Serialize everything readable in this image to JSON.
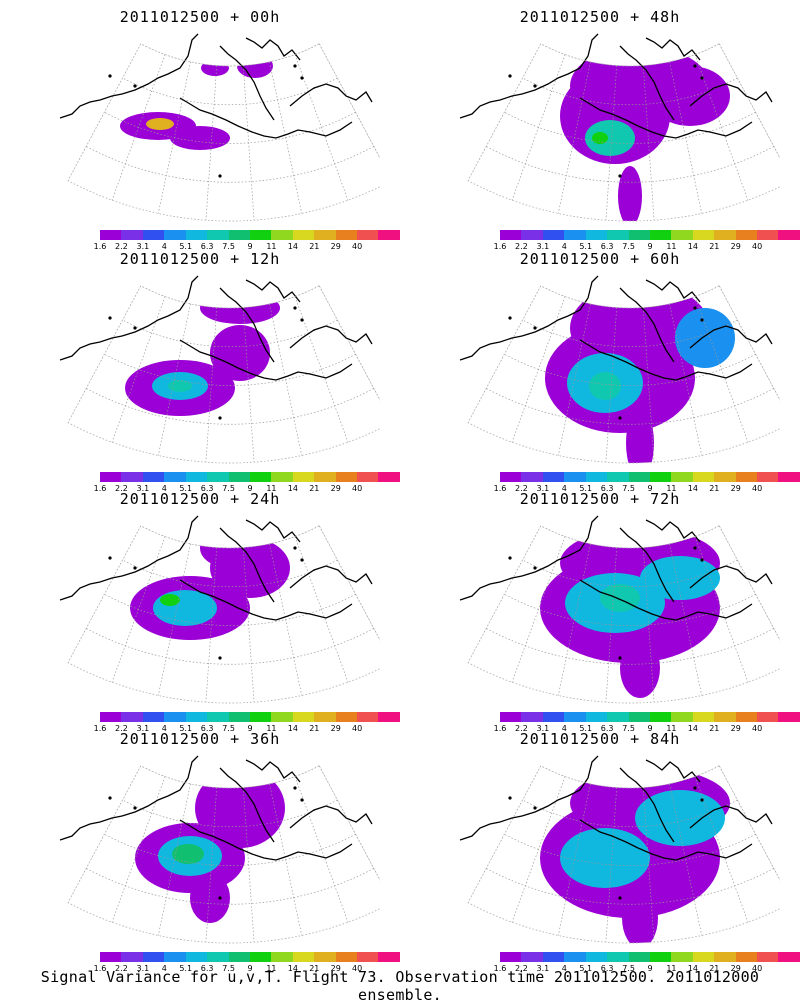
{
  "panels": [
    {
      "title": "2011012500 + 00h",
      "lead_hours": 0
    },
    {
      "title": "2011012500 + 48h",
      "lead_hours": 48
    },
    {
      "title": "2011012500 + 12h",
      "lead_hours": 12
    },
    {
      "title": "2011012500 + 60h",
      "lead_hours": 60
    },
    {
      "title": "2011012500 + 24h",
      "lead_hours": 24
    },
    {
      "title": "2011012500 + 72h",
      "lead_hours": 72
    },
    {
      "title": "2011012500 + 36h",
      "lead_hours": 36
    },
    {
      "title": "2011012500 + 84h",
      "lead_hours": 84
    }
  ],
  "colorbar": {
    "labels": [
      "1.6",
      "2.2",
      "3.1",
      "4",
      "5.1",
      "6.3",
      "7.5",
      "9",
      "11",
      "14",
      "21",
      "29",
      "40"
    ],
    "colors": [
      "#9b00d6",
      "#7a30e6",
      "#3050f0",
      "#1a90f0",
      "#10b8e0",
      "#10c8b0",
      "#10c070",
      "#10d010",
      "#90d820",
      "#d8d820",
      "#e0b020",
      "#e88020",
      "#f05050",
      "#f01080"
    ]
  },
  "footer": "Signal Variance for u,v,T. Flight 73. Observation time 2011012500. 2011012000 ensemble."
}
